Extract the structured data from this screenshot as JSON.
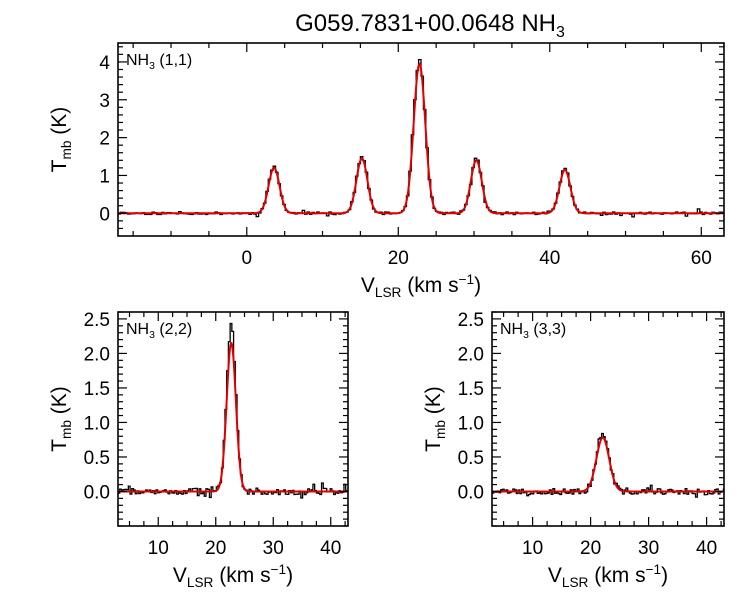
{
  "figure": {
    "title": "G059.7831+00.0648 NH",
    "title_sub": "3"
  },
  "chart_data": [
    {
      "type": "line",
      "panel": "NH3 (1,1)",
      "label": {
        "main": "NH",
        "sub": "3",
        "rest": " (1,1)"
      },
      "xlabel": {
        "main": "V",
        "sub": "LSR",
        "rest": " (km s",
        "sup": "−1",
        "end": ")"
      },
      "ylabel": {
        "main": "T",
        "sub": "mb",
        "rest": " (K)"
      },
      "xlim": [
        -17,
        63
      ],
      "ylim": [
        -0.6,
        4.5
      ],
      "xticks": [
        0,
        20,
        40,
        60
      ],
      "yticks": [
        0,
        1,
        2,
        3,
        4
      ],
      "line_components": [
        {
          "center": 3.6,
          "amplitude": 1.2,
          "fwhm": 1.7
        },
        {
          "center": 15.2,
          "amplitude": 1.45,
          "fwhm": 1.7
        },
        {
          "center": 22.8,
          "amplitude": 3.95,
          "fwhm": 1.8
        },
        {
          "center": 30.3,
          "amplitude": 1.4,
          "fwhm": 1.7
        },
        {
          "center": 42.0,
          "amplitude": 1.15,
          "fwhm": 1.7
        }
      ],
      "series": [
        {
          "role": "data",
          "style": "histogram",
          "color": "#000000"
        },
        {
          "role": "fit",
          "style": "line",
          "color": "#e00000"
        }
      ]
    },
    {
      "type": "line",
      "panel": "NH3 (2,2)",
      "label": {
        "main": "NH",
        "sub": "3",
        "rest": " (2,2)"
      },
      "xlabel": {
        "main": "V",
        "sub": "LSR",
        "rest": " (km s",
        "sup": "−1",
        "end": ")"
      },
      "ylabel": {
        "main": "T",
        "sub": "mb",
        "rest": " (K)"
      },
      "xlim": [
        3,
        43
      ],
      "ylim": [
        -0.5,
        2.6
      ],
      "xticks": [
        10,
        20,
        30,
        40
      ],
      "yticks": [
        "0.0",
        "0.5",
        "1.0",
        "1.5",
        "2.0",
        "2.5"
      ],
      "line_components": [
        {
          "center": 22.7,
          "amplitude": 2.15,
          "fwhm": 1.9
        }
      ],
      "series": [
        {
          "role": "data",
          "style": "histogram",
          "color": "#000000"
        },
        {
          "role": "fit",
          "style": "line",
          "color": "#e00000"
        }
      ]
    },
    {
      "type": "line",
      "panel": "NH3 (3,3)",
      "label": {
        "main": "NH",
        "sub": "3",
        "rest": " (3,3)"
      },
      "xlabel": {
        "main": "V",
        "sub": "LSR",
        "rest": " (km s",
        "sup": "−1",
        "end": ")"
      },
      "ylabel": {
        "main": "T",
        "sub": "mb",
        "rest": " (K)"
      },
      "xlim": [
        3,
        43
      ],
      "ylim": [
        -0.5,
        2.6
      ],
      "xticks": [
        10,
        20,
        30,
        40
      ],
      "yticks": [
        "0.0",
        "0.5",
        "1.0",
        "1.5",
        "2.0",
        "2.5"
      ],
      "line_components": [
        {
          "center": 22.1,
          "amplitude": 0.78,
          "fwhm": 2.6
        }
      ],
      "series": [
        {
          "role": "data",
          "style": "histogram",
          "color": "#000000"
        },
        {
          "role": "fit",
          "style": "line",
          "color": "#e00000"
        }
      ]
    }
  ]
}
